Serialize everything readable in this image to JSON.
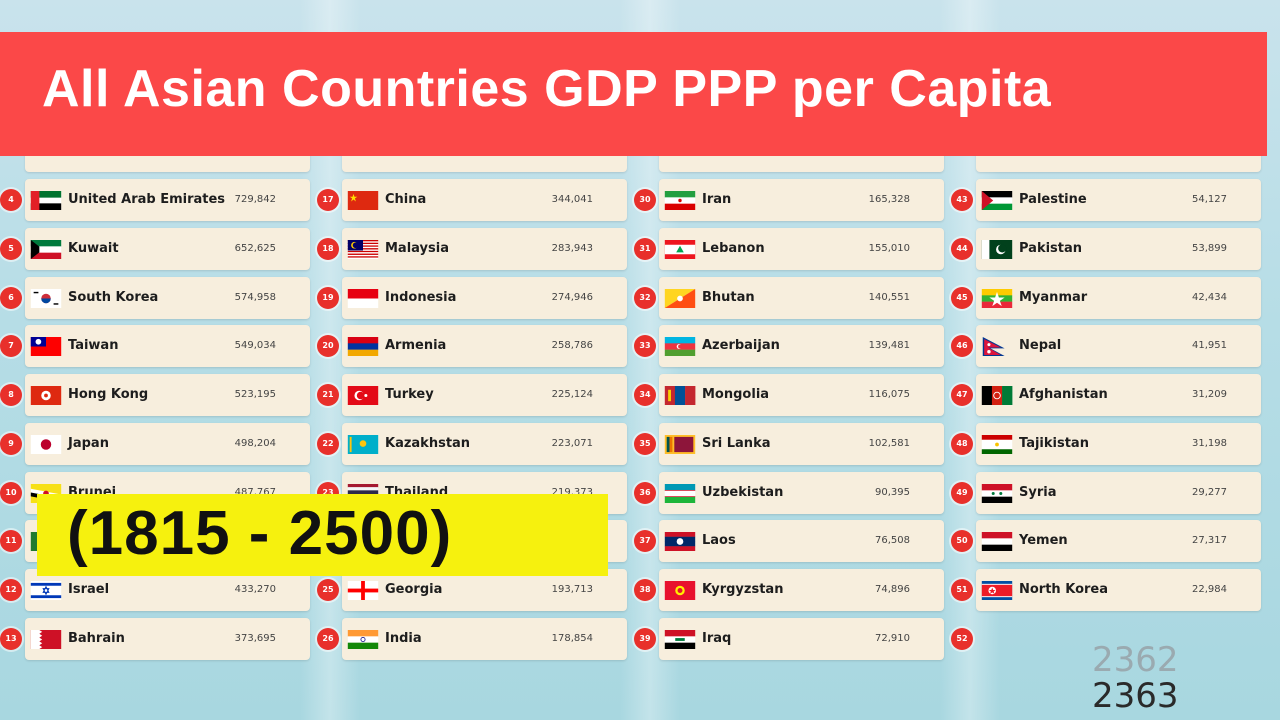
{
  "title": "All Asian Countries GDP PPP per Capita",
  "years_range": "(1815 - 2500)",
  "year_previous": "2362",
  "year_current": "2363",
  "chart_data": {
    "type": "table",
    "columns": [
      [
        {
          "rank": "4",
          "country": "United Arab Emirates",
          "value": "729,842",
          "flag": "uae"
        },
        {
          "rank": "5",
          "country": "Kuwait",
          "value": "652,625",
          "flag": "kuwait"
        },
        {
          "rank": "6",
          "country": "South Korea",
          "value": "574,958",
          "flag": "south-korea"
        },
        {
          "rank": "7",
          "country": "Taiwan",
          "value": "549,034",
          "flag": "taiwan"
        },
        {
          "rank": "8",
          "country": "Hong Kong",
          "value": "523,195",
          "flag": "hong-kong"
        },
        {
          "rank": "9",
          "country": "Japan",
          "value": "498,204",
          "flag": "japan"
        },
        {
          "rank": "10",
          "country": "Brunei",
          "value": "487,767",
          "flag": "brunei"
        },
        {
          "rank": "11",
          "country": "",
          "value": "",
          "flag": "green"
        },
        {
          "rank": "12",
          "country": "Israel",
          "value": "433,270",
          "flag": "israel"
        },
        {
          "rank": "13",
          "country": "Bahrain",
          "value": "373,695",
          "flag": "bahrain"
        }
      ],
      [
        {
          "rank": "17",
          "country": "China",
          "value": "344,041",
          "flag": "china"
        },
        {
          "rank": "18",
          "country": "Malaysia",
          "value": "283,943",
          "flag": "malaysia"
        },
        {
          "rank": "19",
          "country": "Indonesia",
          "value": "274,946",
          "flag": "indonesia"
        },
        {
          "rank": "20",
          "country": "Armenia",
          "value": "258,786",
          "flag": "armenia"
        },
        {
          "rank": "21",
          "country": "Turkey",
          "value": "225,124",
          "flag": "turkey"
        },
        {
          "rank": "22",
          "country": "Kazakhstan",
          "value": "223,071",
          "flag": "kazakhstan"
        },
        {
          "rank": "23",
          "country": "Thailand",
          "value": "219,373",
          "flag": "thailand"
        },
        {
          "rank": "24",
          "country": "",
          "value": "",
          "flag": "none"
        },
        {
          "rank": "25",
          "country": "Georgia",
          "value": "193,713",
          "flag": "georgia"
        },
        {
          "rank": "26",
          "country": "India",
          "value": "178,854",
          "flag": "india"
        }
      ],
      [
        {
          "rank": "30",
          "country": "Iran",
          "value": "165,328",
          "flag": "iran"
        },
        {
          "rank": "31",
          "country": "Lebanon",
          "value": "155,010",
          "flag": "lebanon"
        },
        {
          "rank": "32",
          "country": "Bhutan",
          "value": "140,551",
          "flag": "bhutan"
        },
        {
          "rank": "33",
          "country": "Azerbaijan",
          "value": "139,481",
          "flag": "azerbaijan"
        },
        {
          "rank": "34",
          "country": "Mongolia",
          "value": "116,075",
          "flag": "mongolia"
        },
        {
          "rank": "35",
          "country": "Sri Lanka",
          "value": "102,581",
          "flag": "sri-lanka"
        },
        {
          "rank": "36",
          "country": "Uzbekistan",
          "value": "90,395",
          "flag": "uzbekistan"
        },
        {
          "rank": "37",
          "country": "Laos",
          "value": "76,508",
          "flag": "laos"
        },
        {
          "rank": "38",
          "country": "Kyrgyzstan",
          "value": "74,896",
          "flag": "kyrgyzstan"
        },
        {
          "rank": "39",
          "country": "Iraq",
          "value": "72,910",
          "flag": "iraq"
        }
      ],
      [
        {
          "rank": "43",
          "country": "Palestine",
          "value": "54,127",
          "flag": "palestine"
        },
        {
          "rank": "44",
          "country": "Pakistan",
          "value": "53,899",
          "flag": "pakistan"
        },
        {
          "rank": "45",
          "country": "Myanmar",
          "value": "42,434",
          "flag": "myanmar"
        },
        {
          "rank": "46",
          "country": "Nepal",
          "value": "41,951",
          "flag": "nepal"
        },
        {
          "rank": "47",
          "country": "Afghanistan",
          "value": "31,209",
          "flag": "afghanistan"
        },
        {
          "rank": "48",
          "country": "Tajikistan",
          "value": "31,198",
          "flag": "tajikistan"
        },
        {
          "rank": "49",
          "country": "Syria",
          "value": "29,277",
          "flag": "syria"
        },
        {
          "rank": "50",
          "country": "Yemen",
          "value": "27,317",
          "flag": "yemen"
        },
        {
          "rank": "51",
          "country": "North Korea",
          "value": "22,984",
          "flag": "north-korea"
        },
        {
          "rank": "52",
          "country": "",
          "value": "",
          "flag": "none"
        }
      ]
    ]
  }
}
